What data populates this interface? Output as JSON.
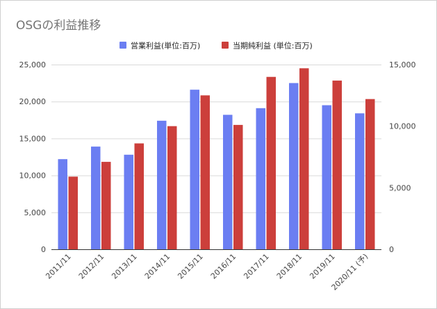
{
  "chart_data": {
    "type": "bar",
    "title": "OSGの利益推移",
    "categories": [
      "2011/11",
      "2012/11",
      "2013/11",
      "2014/11",
      "2015/11",
      "2016/11",
      "2017/11",
      "2018/11",
      "2019/11",
      "2020/11 (予)"
    ],
    "series": [
      {
        "name": "営業利益(単位:百万)",
        "color": "#6b7ef2",
        "axis": "left",
        "values": [
          12200,
          13900,
          12800,
          17400,
          21600,
          18200,
          19100,
          22500,
          19500,
          18400
        ]
      },
      {
        "name": "当期純利益 (単位:百万)",
        "color": "#cc3f3b",
        "axis": "right",
        "values": [
          5900,
          7100,
          8600,
          10000,
          12500,
          10100,
          14000,
          14700,
          13700,
          12200
        ]
      }
    ],
    "y_left": {
      "min": 0,
      "max": 25000,
      "ticks": [
        "0",
        "5,000",
        "10,000",
        "15,000",
        "20,000",
        "25,000"
      ]
    },
    "y_right": {
      "min": 0,
      "max": 15000,
      "ticks": [
        "0",
        "5,000",
        "10,000",
        "15,000"
      ]
    },
    "legend": "top",
    "grid": true
  }
}
